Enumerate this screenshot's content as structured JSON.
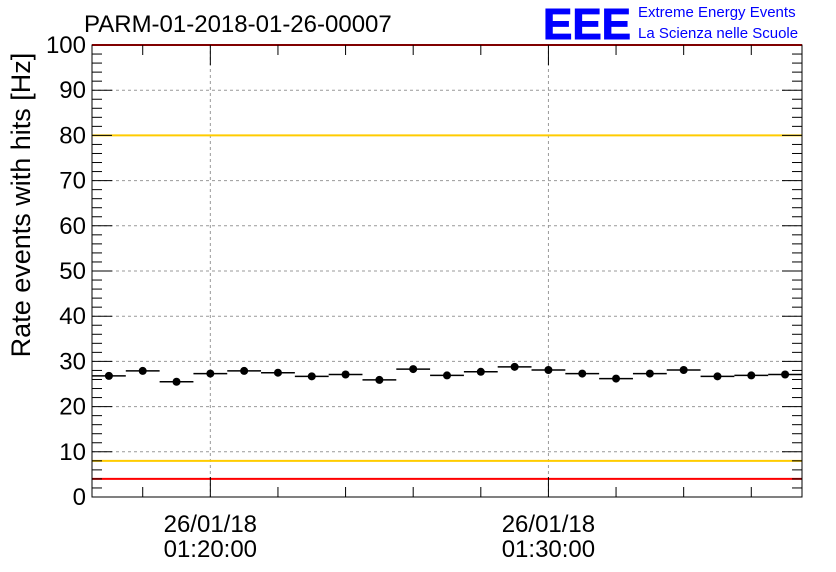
{
  "chart_data": {
    "type": "scatter",
    "title": "PARM-01-2018-01-26-00007",
    "ylabel": "Rate events with hits [Hz]",
    "xlabel": "",
    "ylim": [
      0,
      100
    ],
    "xlim": [
      0,
      21
    ],
    "yticks": [
      "0",
      "10",
      "20",
      "30",
      "40",
      "50",
      "60",
      "70",
      "80",
      "90",
      "100"
    ],
    "xtick_labels": [
      {
        "at": 3.5,
        "date": "26/01/18",
        "time": "01:20:00"
      },
      {
        "at": 13.5,
        "date": "26/01/18",
        "time": "01:30:00"
      }
    ],
    "values": [
      26.8,
      27.9,
      25.5,
      27.3,
      27.9,
      27.5,
      26.7,
      27.1,
      25.9,
      28.3,
      26.9,
      27.7,
      28.8,
      28.1,
      27.3,
      26.2,
      27.3,
      28.1,
      26.7,
      26.9,
      27.1
    ],
    "reference_lines": [
      {
        "name": "red-upper-line",
        "y": 100,
        "color": "#ff0000"
      },
      {
        "name": "yellow-upper-line",
        "y": 80,
        "color": "#ffcc00"
      },
      {
        "name": "yellow-lower-line",
        "y": 8,
        "color": "#ffcc00"
      },
      {
        "name": "red-lower-line",
        "y": 4,
        "color": "#ff0000"
      }
    ],
    "grid": true
  },
  "logo": {
    "mark": "EEE",
    "line1": "Extreme Energy Events",
    "line2": "La Scienza nelle Scuole",
    "color": "#0000ff"
  }
}
